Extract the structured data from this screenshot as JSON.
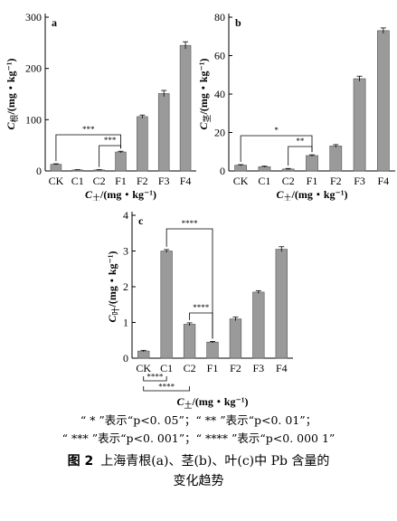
{
  "bar_color": "#9a9a9a",
  "chart_data": [
    {
      "panel_label": "a",
      "type": "bar",
      "categories": [
        "CK",
        "C1",
        "C2",
        "F1",
        "F2",
        "F3",
        "F4"
      ],
      "values": [
        13,
        2,
        2,
        37,
        106,
        151,
        245
      ],
      "errors": [
        1,
        0.5,
        0.5,
        1.5,
        3,
        6,
        7
      ],
      "ylim": [
        0,
        300
      ],
      "yticks": [
        0,
        100,
        200,
        300
      ],
      "ylabel": {
        "main": "C",
        "sub": "根",
        "unit": "/(mg・kg⁻¹)"
      },
      "xlabel": {
        "main": "C",
        "sub": "土",
        "unit": "/(mg・kg⁻¹)"
      },
      "significance": [
        {
          "from": "CK",
          "to": "F1",
          "label": "***"
        },
        {
          "from": "C2",
          "to": "F1",
          "label": "***"
        }
      ]
    },
    {
      "panel_label": "b",
      "type": "bar",
      "categories": [
        "CK",
        "C1",
        "C2",
        "F1",
        "F2",
        "F3",
        "F4"
      ],
      "values": [
        3,
        2.2,
        1,
        8,
        13,
        48,
        73
      ],
      "errors": [
        0.3,
        0.3,
        0.3,
        0.4,
        0.7,
        1.3,
        1.4
      ],
      "ylim": [
        0,
        80
      ],
      "yticks": [
        0,
        20,
        40,
        60,
        80
      ],
      "ylabel": {
        "main": "C",
        "sub": "茎",
        "unit": "/(mg・kg⁻¹)"
      },
      "xlabel": {
        "main": "C",
        "sub": "土",
        "unit": "/(mg・kg⁻¹)"
      },
      "significance": [
        {
          "from": "CK",
          "to": "F1",
          "label": "*"
        },
        {
          "from": "C2",
          "to": "F1",
          "label": "**"
        }
      ]
    },
    {
      "panel_label": "c",
      "type": "bar",
      "categories": [
        "CK",
        "C1",
        "C2",
        "F1",
        "F2",
        "F3",
        "F4"
      ],
      "values": [
        0.2,
        3.0,
        0.95,
        0.45,
        1.1,
        1.85,
        3.05
      ],
      "errors": [
        0.02,
        0.04,
        0.04,
        0.02,
        0.05,
        0.04,
        0.07
      ],
      "ylim": [
        0,
        4
      ],
      "yticks": [
        0,
        1,
        2,
        3,
        4
      ],
      "ylabel": {
        "main": "C",
        "sub": "叶",
        "unit": "/(mg・kg⁻¹)"
      },
      "xlabel": {
        "main": "C",
        "sub": "土",
        "unit": "/(mg・kg⁻¹)"
      },
      "significance": [
        {
          "from": "C1",
          "to": "F1",
          "label": "****",
          "side": "top"
        },
        {
          "from": "C2",
          "to": "F1",
          "label": "****",
          "side": "top"
        },
        {
          "from": "CK",
          "to": "C1",
          "label": "****",
          "side": "bottom"
        },
        {
          "from": "CK",
          "to": "C2",
          "label": "****",
          "side": "bottom"
        }
      ]
    }
  ],
  "caption": {
    "line1": "“ * ”表示“p<0. 05”；“ ** ”表示“p<0. 01”；",
    "line2": "“ *** ”表示“p<0. 001”；“ **** ”表示“p<0. 000 1”",
    "fig_number": "图 2",
    "fig_title_line1": "上海青根(a)、茎(b)、叶(c)中 Pb 含量的",
    "fig_title_line2": "变化趋势"
  }
}
